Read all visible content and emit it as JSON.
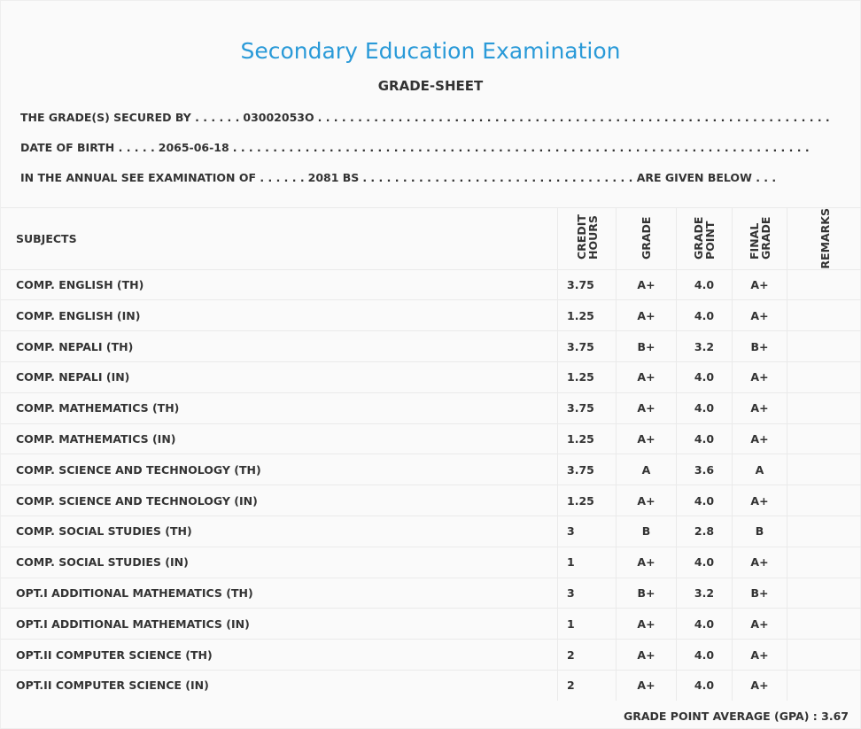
{
  "header": {
    "title": "Secondary Education Examination",
    "subtitle": "GRADE-SHEET"
  },
  "info": [
    {
      "label": "THE GRADE(S) SECURED BY . . . . . .",
      "value": "03002053O",
      "trail": ". . . . . . . . . . . . . . . . . . . . . . . . . . . . . . . . . . . . . . . . . . . . . . . . . . . . . . . . . . . . . . . ."
    },
    {
      "label": "DATE OF BIRTH . . . . .",
      "value": "2065-06-18",
      "trail": ". . . . . . . . . . . . . . . . . . . . . . . . . . . . . . . . . . . . . . . . . . . . . . . . . . . . . . . . . . . . . . . . . . . . . . . ."
    },
    {
      "label": "IN THE ANNUAL SEE EXAMINATION OF . . . . . .",
      "value": "2081 BS",
      "trail": ". . . . . . . . . . . . . . . . . . . . . . . . . . . . . . . . . . ARE GIVEN BELOW . . ."
    }
  ],
  "table": {
    "columns": [
      "SUBJECTS",
      "CREDIT HOURS",
      "GRADE",
      "GRADE POINT",
      "FINAL GRADE",
      "REMARKS"
    ],
    "rows": [
      [
        "COMP. ENGLISH (TH)",
        "3.75",
        "A+",
        "4.0",
        "A+"
      ],
      [
        "COMP. ENGLISH (IN)",
        "1.25",
        "A+",
        "4.0",
        "A+"
      ],
      [
        "COMP. NEPALI (TH)",
        "3.75",
        "B+",
        "3.2",
        "B+"
      ],
      [
        "COMP. NEPALI (IN)",
        "1.25",
        "A+",
        "4.0",
        "A+"
      ],
      [
        "COMP. MATHEMATICS (TH)",
        "3.75",
        "A+",
        "4.0",
        "A+"
      ],
      [
        "COMP. MATHEMATICS (IN)",
        "1.25",
        "A+",
        "4.0",
        "A+"
      ],
      [
        "COMP. SCIENCE AND TECHNOLOGY (TH)",
        "3.75",
        "A",
        "3.6",
        "A"
      ],
      [
        "COMP. SCIENCE AND TECHNOLOGY (IN)",
        "1.25",
        "A+",
        "4.0",
        "A+"
      ],
      [
        "COMP. SOCIAL STUDIES (TH)",
        "3",
        "B",
        "2.8",
        "B"
      ],
      [
        "COMP. SOCIAL STUDIES (IN)",
        "1",
        "A+",
        "4.0",
        "A+"
      ],
      [
        "OPT.I ADDITIONAL MATHEMATICS (TH)",
        "3",
        "B+",
        "3.2",
        "B+"
      ],
      [
        "OPT.I ADDITIONAL MATHEMATICS (IN)",
        "1",
        "A+",
        "4.0",
        "A+"
      ],
      [
        "OPT.II COMPUTER SCIENCE (TH)",
        "2",
        "A+",
        "4.0",
        "A+"
      ],
      [
        "OPT.II COMPUTER SCIENCE (IN)",
        "2",
        "A+",
        "4.0",
        "A+"
      ]
    ]
  },
  "gpa": {
    "label": "GRADE POINT AVERAGE (GPA) :",
    "value": "3.67"
  }
}
